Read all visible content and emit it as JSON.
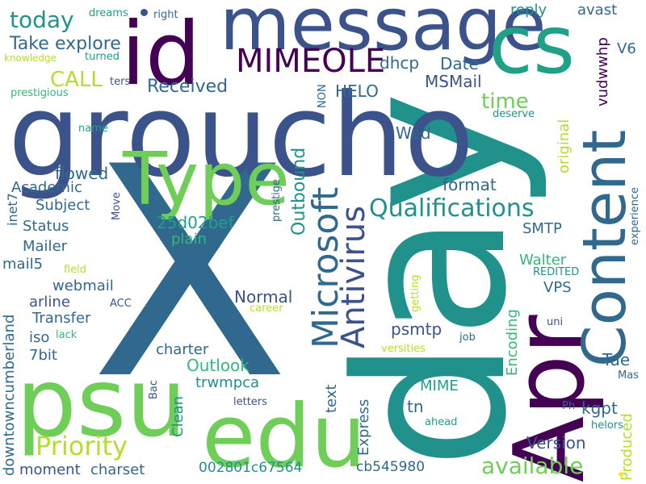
{
  "palette": {
    "background": "#ffffff",
    "dark_purple": "#440154",
    "indigo": "#3b528b",
    "steel_blue": "#31688e",
    "teal": "#21918c",
    "green_teal": "#1fa187",
    "green": "#35b779",
    "light_green": "#6ece58",
    "yellow_green": "#b5de2b",
    "yellow": "#fde725"
  },
  "words": {
    "x": "X",
    "day": "day",
    "groucho": "groucho",
    "apr": "Apr",
    "psu": "psu",
    "message": "message",
    "id": "id",
    "edu": "edu",
    "cs": "cs",
    "content": "Content",
    "type": "Type",
    "priority": "Priority",
    "microsoft": "Microsoft",
    "antivirus": "Antivirus",
    "qualifications": "Qualifications",
    "mimeole": "MIMEOLE",
    "today": "today",
    "available": "available",
    "outbound": "Outbound",
    "take": "Take",
    "explore": "explore",
    "call": "CALL",
    "received": "Received",
    "time": "time",
    "date": "Date",
    "dhcp": "dhcp",
    "msmail": "MSMail",
    "reply": "reply",
    "avast": "avast",
    "v6": "V6",
    "vudwwhp": "vudwwhp",
    "helo": "HELO",
    "non": "NON",
    "flowed": "flowed",
    "wed": "Wed",
    "format": "format",
    "academic": "Academic",
    "subject": "Subject",
    "status": "Status",
    "mailer": "Mailer",
    "hash": "25d02bef",
    "plain": "plain",
    "smtp": "SMTP",
    "walter": "Walter",
    "inet7": "inet7",
    "mail5": "mail5",
    "webmail": "webmail",
    "arline": "arline",
    "transfer": "Transfer",
    "iso": "iso",
    "bit7": "7bit",
    "normal": "Normal",
    "psmtp": "psmtp",
    "vps": "VPS",
    "charter": "charter",
    "outlook": "Outlook",
    "trwmpca": "trwmpca",
    "clean": "Clean",
    "downtowncumberland": "downtowncumberland",
    "moment": "moment",
    "charset": "charset",
    "long_hex": "002801c67564",
    "cb": "cb545980",
    "mime": "MIME",
    "tn": "tn",
    "express": "Express",
    "text": "text",
    "encoding": "Encoding",
    "version": "Version",
    "kgpt": "kgpt",
    "produced": "Produced",
    "tue": "Tue",
    "original": "original",
    "experience": "experience",
    "dreams": "dreams",
    "right": "right",
    "knowledge": "knowledge",
    "turned": "turned",
    "ters": "ters",
    "prestigious": "prestigious",
    "name": "name",
    "move": "Move",
    "prestige": "prestige",
    "field": "field",
    "acc": "ACC",
    "lack": "lack",
    "career": "career",
    "getting": "getting",
    "versities": "versities",
    "job": "job",
    "uni": "uni",
    "mas": "Mas",
    "helors": "helors",
    "ph": "Ph",
    "ahead": "ahead",
    "letters": "letters",
    "bac": "Bac",
    "d": "D",
    "deserve": "deserve",
    "redited": "REDITED"
  }
}
